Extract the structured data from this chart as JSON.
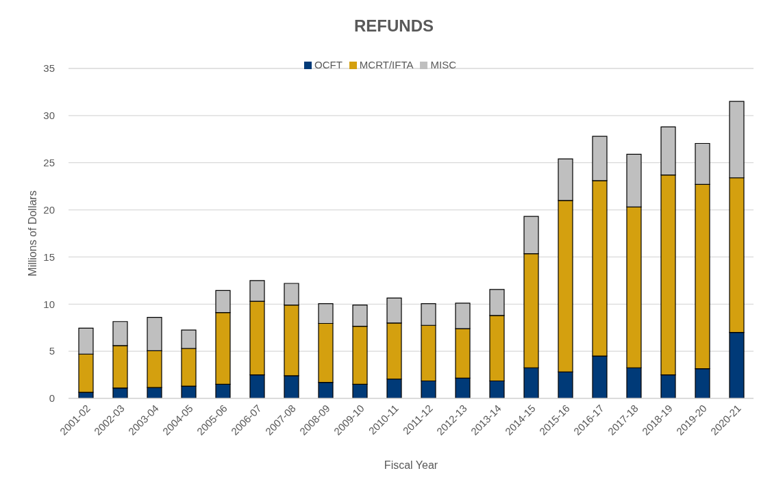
{
  "chart_data": {
    "type": "bar",
    "title": "REFUNDS",
    "xlabel": "Fiscal Year",
    "ylabel": "Millions of Dollars",
    "categories": [
      "2001-02",
      "2002-03",
      "2003-04",
      "2004-05",
      "2005-06",
      "2006-07",
      "2007-08",
      "2008-09",
      "2009-10",
      "2010-11",
      "2011-12",
      "2012-13",
      "2013-14",
      "2014-15",
      "2015-16",
      "2016-17",
      "2017-18",
      "2018-19",
      "2019-20",
      "2020-21"
    ],
    "series": [
      {
        "name": "OCFT",
        "color": "#003a78",
        "values": [
          0.65,
          1.1,
          1.15,
          1.3,
          1.5,
          2.5,
          2.4,
          1.7,
          1.5,
          2.05,
          1.85,
          2.15,
          1.85,
          3.25,
          2.8,
          4.5,
          3.25,
          2.5,
          3.15,
          7.0
        ]
      },
      {
        "name": "MCRT/IFTA",
        "color": "#d4a00f",
        "values": [
          4.05,
          4.5,
          3.9,
          4.0,
          7.6,
          7.8,
          7.5,
          6.25,
          6.15,
          5.95,
          5.9,
          5.25,
          6.95,
          12.1,
          18.2,
          18.6,
          17.05,
          21.2,
          19.55,
          16.4
        ]
      },
      {
        "name": "MISC",
        "color": "#bfbfbf",
        "values": [
          2.75,
          2.55,
          3.55,
          1.95,
          2.35,
          2.2,
          2.3,
          2.1,
          2.25,
          2.65,
          2.3,
          2.7,
          2.75,
          3.95,
          4.4,
          4.7,
          5.6,
          5.1,
          4.35,
          8.1
        ]
      }
    ],
    "stacked": true,
    "ylim": [
      0,
      35
    ],
    "yticks": [
      0,
      5,
      10,
      15,
      20,
      25,
      30,
      35
    ],
    "grid": "y",
    "legend": "top"
  }
}
